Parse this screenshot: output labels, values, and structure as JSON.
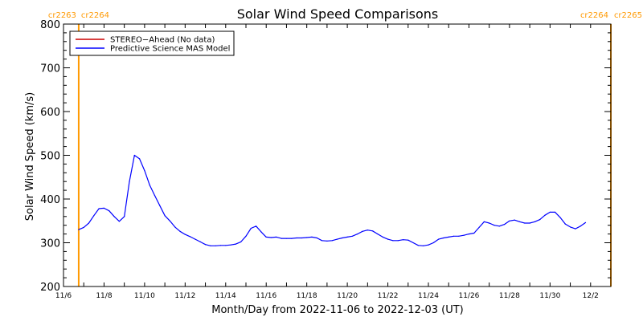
{
  "chart_data": {
    "type": "line",
    "title": "Solar Wind Speed Comparisons",
    "xlabel": "Month/Day from 2022-11-06 to 2022-12-03 (UT)",
    "ylabel": "Solar Wind Speed (km/s)",
    "ylim": [
      200,
      800
    ],
    "xlim": [
      "2022-11-06",
      "2022-12-03"
    ],
    "yticks": [
      "200",
      "300",
      "400",
      "500",
      "600",
      "700",
      "800"
    ],
    "xticks": [
      {
        "date": "2022-11-06",
        "label": "11/6"
      },
      {
        "date": "2022-11-08",
        "label": "11/8"
      },
      {
        "date": "2022-11-10",
        "label": "11/10"
      },
      {
        "date": "2022-11-12",
        "label": "11/12"
      },
      {
        "date": "2022-11-14",
        "label": "11/14"
      },
      {
        "date": "2022-11-16",
        "label": "11/16"
      },
      {
        "date": "2022-11-18",
        "label": "11/18"
      },
      {
        "date": "2022-11-20",
        "label": "11/20"
      },
      {
        "date": "2022-11-22",
        "label": "11/22"
      },
      {
        "date": "2022-11-24",
        "label": "11/24"
      },
      {
        "date": "2022-11-26",
        "label": "11/26"
      },
      {
        "date": "2022-11-28",
        "label": "11/28"
      },
      {
        "date": "2022-11-30",
        "label": "11/30"
      },
      {
        "date": "2022-12-02",
        "label": "12/2"
      }
    ],
    "grid": false,
    "legend_position": "top-left",
    "series": [
      {
        "name": "STEREO−Ahead (No data)",
        "color": "#cc0000",
        "points": []
      },
      {
        "name": "Predictive Science MAS Model",
        "color": "#0000ff",
        "points": [
          [
            "2022-11-06T18:00",
            330
          ],
          [
            "2022-11-07T00:00",
            335
          ],
          [
            "2022-11-07T06:00",
            345
          ],
          [
            "2022-11-07T12:00",
            362
          ],
          [
            "2022-11-07T18:00",
            378
          ],
          [
            "2022-11-08T00:00",
            379
          ],
          [
            "2022-11-08T06:00",
            373
          ],
          [
            "2022-11-08T12:00",
            360
          ],
          [
            "2022-11-08T18:00",
            349
          ],
          [
            "2022-11-09T00:00",
            360
          ],
          [
            "2022-11-09T06:00",
            440
          ],
          [
            "2022-11-09T12:00",
            500
          ],
          [
            "2022-11-09T18:00",
            492
          ],
          [
            "2022-11-10T00:00",
            465
          ],
          [
            "2022-11-10T06:00",
            432
          ],
          [
            "2022-11-10T12:00",
            408
          ],
          [
            "2022-11-10T18:00",
            385
          ],
          [
            "2022-11-11T00:00",
            362
          ],
          [
            "2022-11-11T06:00",
            350
          ],
          [
            "2022-11-11T12:00",
            336
          ],
          [
            "2022-11-11T18:00",
            326
          ],
          [
            "2022-11-12T00:00",
            319
          ],
          [
            "2022-11-12T06:00",
            314
          ],
          [
            "2022-11-12T12:00",
            308
          ],
          [
            "2022-11-12T18:00",
            302
          ],
          [
            "2022-11-13T00:00",
            296
          ],
          [
            "2022-11-13T06:00",
            293
          ],
          [
            "2022-11-13T12:00",
            293
          ],
          [
            "2022-11-13T18:00",
            294
          ],
          [
            "2022-11-14T00:00",
            294
          ],
          [
            "2022-11-14T06:00",
            295
          ],
          [
            "2022-11-14T12:00",
            297
          ],
          [
            "2022-11-14T18:00",
            302
          ],
          [
            "2022-11-15T00:00",
            315
          ],
          [
            "2022-11-15T06:00",
            333
          ],
          [
            "2022-11-15T12:00",
            338
          ],
          [
            "2022-11-15T18:00",
            325
          ],
          [
            "2022-11-16T00:00",
            313
          ],
          [
            "2022-11-16T06:00",
            312
          ],
          [
            "2022-11-16T12:00",
            313
          ],
          [
            "2022-11-16T18:00",
            310
          ],
          [
            "2022-11-17T00:00",
            310
          ],
          [
            "2022-11-17T06:00",
            310
          ],
          [
            "2022-11-17T12:00",
            311
          ],
          [
            "2022-11-17T18:00",
            311
          ],
          [
            "2022-11-18T00:00",
            312
          ],
          [
            "2022-11-18T06:00",
            313
          ],
          [
            "2022-11-18T12:00",
            311
          ],
          [
            "2022-11-18T18:00",
            305
          ],
          [
            "2022-11-19T00:00",
            304
          ],
          [
            "2022-11-19T06:00",
            305
          ],
          [
            "2022-11-19T12:00",
            308
          ],
          [
            "2022-11-19T18:00",
            311
          ],
          [
            "2022-11-20T00:00",
            313
          ],
          [
            "2022-11-20T06:00",
            315
          ],
          [
            "2022-11-20T12:00",
            320
          ],
          [
            "2022-11-20T18:00",
            326
          ],
          [
            "2022-11-21T00:00",
            329
          ],
          [
            "2022-11-21T06:00",
            327
          ],
          [
            "2022-11-21T12:00",
            320
          ],
          [
            "2022-11-21T18:00",
            313
          ],
          [
            "2022-11-22T00:00",
            308
          ],
          [
            "2022-11-22T06:00",
            305
          ],
          [
            "2022-11-22T12:00",
            305
          ],
          [
            "2022-11-22T18:00",
            307
          ],
          [
            "2022-11-23T00:00",
            306
          ],
          [
            "2022-11-23T06:00",
            300
          ],
          [
            "2022-11-23T12:00",
            294
          ],
          [
            "2022-11-23T18:00",
            293
          ],
          [
            "2022-11-24T00:00",
            295
          ],
          [
            "2022-11-24T06:00",
            300
          ],
          [
            "2022-11-24T12:00",
            308
          ],
          [
            "2022-11-24T18:00",
            311
          ],
          [
            "2022-11-25T00:00",
            313
          ],
          [
            "2022-11-25T06:00",
            315
          ],
          [
            "2022-11-25T12:00",
            315
          ],
          [
            "2022-11-25T18:00",
            317
          ],
          [
            "2022-11-26T00:00",
            320
          ],
          [
            "2022-11-26T06:00",
            322
          ],
          [
            "2022-11-26T12:00",
            335
          ],
          [
            "2022-11-26T18:00",
            348
          ],
          [
            "2022-11-27T00:00",
            345
          ],
          [
            "2022-11-27T06:00",
            340
          ],
          [
            "2022-11-27T12:00",
            338
          ],
          [
            "2022-11-27T18:00",
            342
          ],
          [
            "2022-11-28T00:00",
            350
          ],
          [
            "2022-11-28T06:00",
            352
          ],
          [
            "2022-11-28T12:00",
            348
          ],
          [
            "2022-11-28T18:00",
            345
          ],
          [
            "2022-11-29T00:00",
            345
          ],
          [
            "2022-11-29T06:00",
            348
          ],
          [
            "2022-11-29T12:00",
            353
          ],
          [
            "2022-11-29T18:00",
            363
          ],
          [
            "2022-11-30T00:00",
            370
          ],
          [
            "2022-11-30T06:00",
            370
          ],
          [
            "2022-11-30T12:00",
            358
          ],
          [
            "2022-11-30T18:00",
            343
          ],
          [
            "2022-12-01T00:00",
            336
          ],
          [
            "2022-12-01T06:00",
            332
          ],
          [
            "2022-12-01T12:00",
            338
          ],
          [
            "2022-12-01T18:00",
            346
          ]
        ]
      }
    ],
    "markers": [
      {
        "date": "2022-11-06T18:00",
        "color": "#ff9900",
        "label_left": "cr2263",
        "label_right": "cr2264"
      },
      {
        "date": "2022-12-03T00:00",
        "color": "#ff9900",
        "label_left": "cr2264",
        "label_right": "cr2265"
      }
    ]
  }
}
